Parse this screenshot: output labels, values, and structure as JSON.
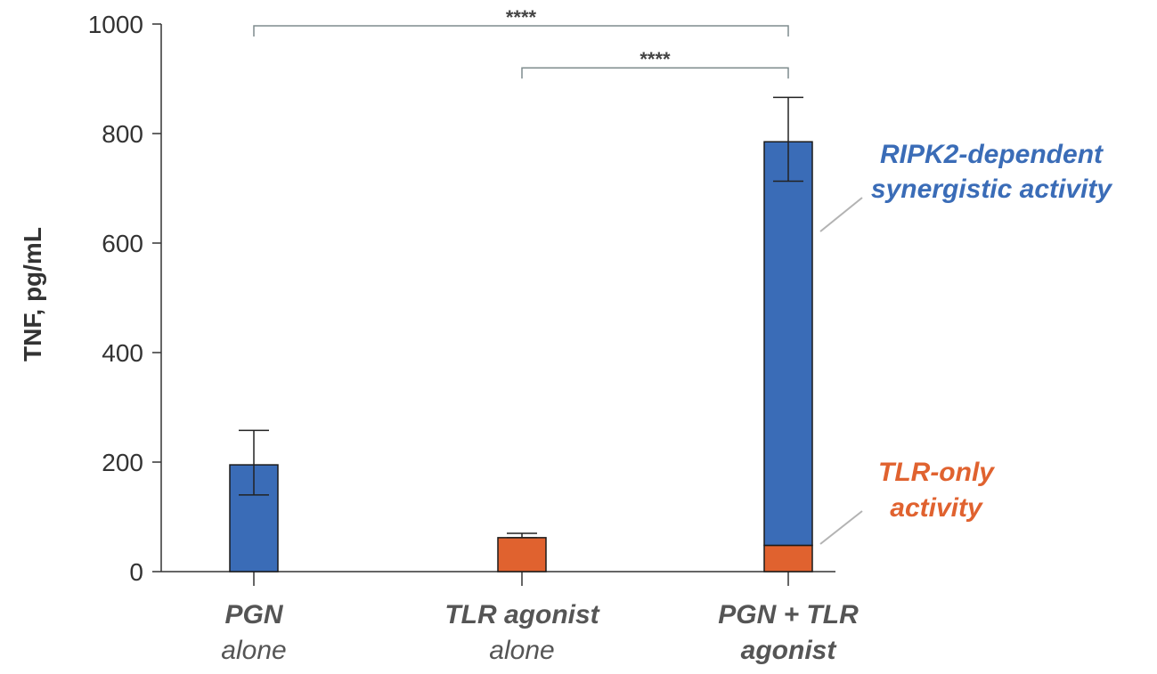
{
  "chart_data": {
    "type": "bar",
    "stacked": true,
    "ylabel": "TNF, pg/mL",
    "xlabel": "",
    "ylim": [
      0,
      1000
    ],
    "yticks": [
      0,
      200,
      400,
      600,
      800,
      1000
    ],
    "grid": false,
    "categories": [
      {
        "line1": "PGN",
        "line2": "alone",
        "line1_bold": true,
        "line2_bold": false
      },
      {
        "line1": "TLR agonist",
        "line2": "alone",
        "line1_bold": true,
        "line2_bold": false
      },
      {
        "line1": "PGN + TLR",
        "line2": "agonist",
        "line1_bold": true,
        "line2_bold": true
      }
    ],
    "bars": [
      {
        "segments": [
          {
            "value": 195,
            "color": "#3a6cb7"
          }
        ],
        "error": {
          "low": 140,
          "high": 258
        }
      },
      {
        "segments": [
          {
            "value": 62,
            "color": "#e0622f"
          }
        ],
        "error": {
          "low": 62,
          "high": 70
        }
      },
      {
        "segments": [
          {
            "value": 48,
            "color": "#e0622f"
          },
          {
            "value": 737,
            "color": "#3a6cb7"
          }
        ],
        "error": {
          "low": 713,
          "high": 866
        }
      }
    ],
    "significance": [
      {
        "from": 0,
        "to": 2,
        "level": 1000,
        "label": "****"
      },
      {
        "from": 1,
        "to": 2,
        "level": 920,
        "label": "****"
      }
    ],
    "annotations": [
      {
        "lines": [
          "RIPK2-dependent",
          "synergistic activity"
        ],
        "color": "#3a6cb7",
        "points_to_value": 620
      },
      {
        "lines": [
          "TLR-only",
          "activity"
        ],
        "color": "#e0622f",
        "points_to_value": 48
      }
    ]
  }
}
